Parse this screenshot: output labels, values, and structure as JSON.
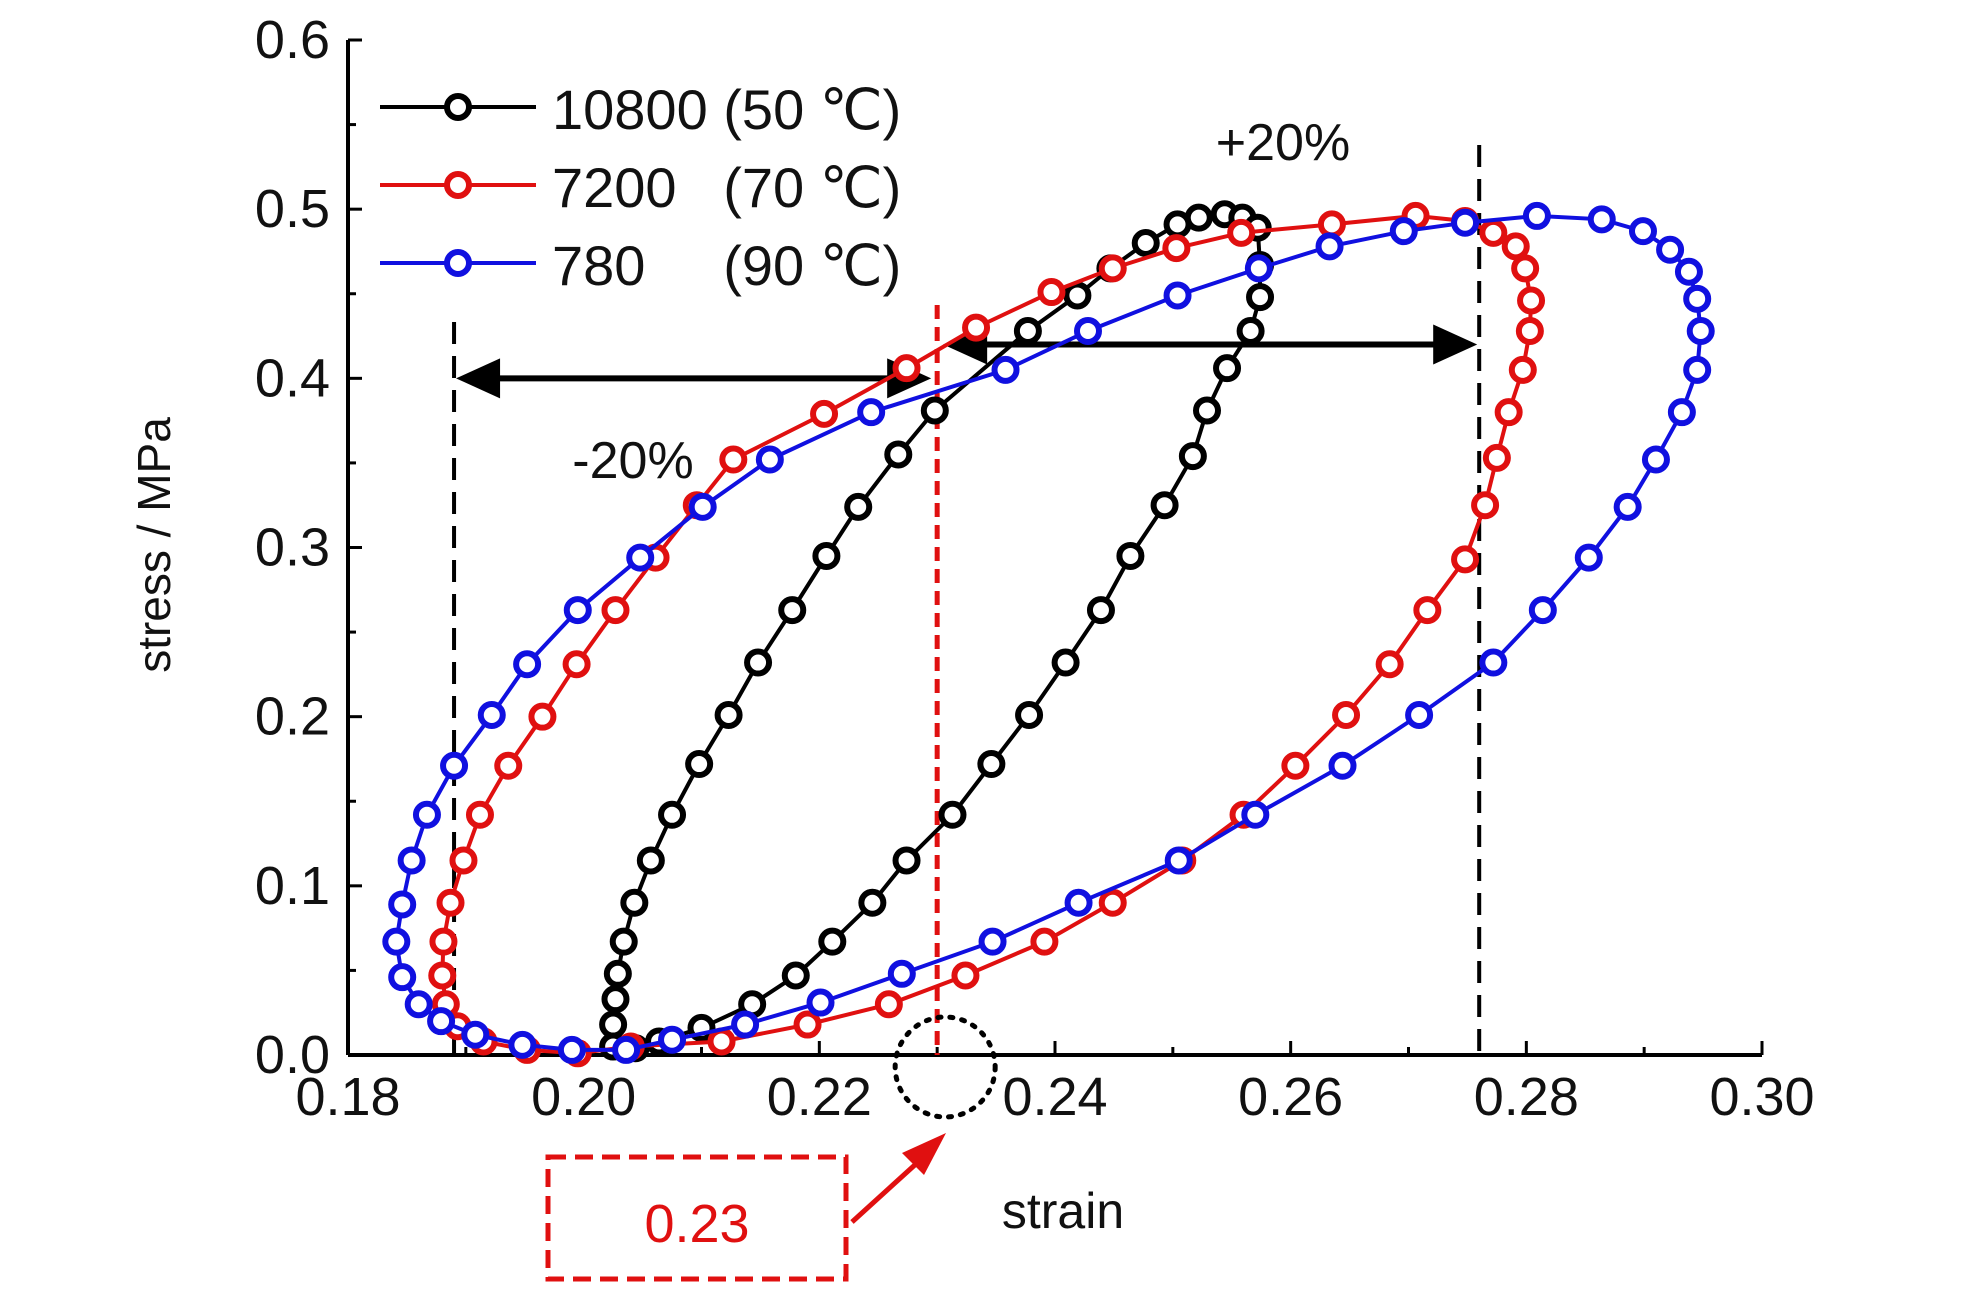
{
  "chart_data": {
    "type": "line",
    "xlabel": "strain",
    "ylabel": "stress / MPa",
    "xlim": [
      0.18,
      0.3
    ],
    "ylim": [
      0.0,
      0.6
    ],
    "xticks": [
      "0.18",
      "0.20",
      "0.22",
      "0.24",
      "0.26",
      "0.28",
      "0.30"
    ],
    "yticks": [
      "0.0",
      "0.1",
      "0.2",
      "0.3",
      "0.4",
      "0.5",
      "0.6"
    ],
    "grid": false,
    "legend_position": "top-left",
    "series": [
      {
        "name": "10800 (50 ℃)",
        "color": "#000000",
        "points": [
          [
            0.2025,
            0.005
          ],
          [
            0.2025,
            0.018
          ],
          [
            0.2027,
            0.033
          ],
          [
            0.2029,
            0.048
          ],
          [
            0.2034,
            0.067
          ],
          [
            0.2043,
            0.09
          ],
          [
            0.2057,
            0.115
          ],
          [
            0.2075,
            0.142
          ],
          [
            0.2098,
            0.172
          ],
          [
            0.2123,
            0.201
          ],
          [
            0.2148,
            0.232
          ],
          [
            0.2177,
            0.263
          ],
          [
            0.2206,
            0.295
          ],
          [
            0.2233,
            0.324
          ],
          [
            0.2267,
            0.355
          ],
          [
            0.2298,
            0.381
          ],
          [
            0.2377,
            0.428
          ],
          [
            0.2419,
            0.449
          ],
          [
            0.2447,
            0.465
          ],
          [
            0.2477,
            0.48
          ],
          [
            0.2504,
            0.491
          ],
          [
            0.2522,
            0.495
          ],
          [
            0.2544,
            0.497
          ],
          [
            0.2559,
            0.495
          ],
          [
            0.2572,
            0.489
          ],
          [
            0.2574,
            0.467
          ],
          [
            0.2574,
            0.448
          ],
          [
            0.2566,
            0.428
          ],
          [
            0.2546,
            0.406
          ],
          [
            0.2529,
            0.381
          ],
          [
            0.2517,
            0.354
          ],
          [
            0.2493,
            0.325
          ],
          [
            0.2464,
            0.295
          ],
          [
            0.2439,
            0.263
          ],
          [
            0.2409,
            0.232
          ],
          [
            0.2378,
            0.201
          ],
          [
            0.2346,
            0.172
          ],
          [
            0.2313,
            0.142
          ],
          [
            0.2274,
            0.115
          ],
          [
            0.2245,
            0.09
          ],
          [
            0.2211,
            0.067
          ],
          [
            0.218,
            0.047
          ],
          [
            0.2143,
            0.03
          ],
          [
            0.21,
            0.016
          ],
          [
            0.2064,
            0.008
          ],
          [
            0.2044,
            0.004
          ],
          [
            0.2025,
            0.005
          ]
        ]
      },
      {
        "name": "7200   (70 ℃)",
        "color": "#e01010",
        "points": [
          [
            0.204,
            0.005
          ],
          [
            0.1995,
            0.001
          ],
          [
            0.1952,
            0.003
          ],
          [
            0.1915,
            0.008
          ],
          [
            0.1893,
            0.017
          ],
          [
            0.1883,
            0.03
          ],
          [
            0.188,
            0.047
          ],
          [
            0.1881,
            0.067
          ],
          [
            0.1887,
            0.09
          ],
          [
            0.1898,
            0.115
          ],
          [
            0.1912,
            0.142
          ],
          [
            0.1936,
            0.171
          ],
          [
            0.1965,
            0.2
          ],
          [
            0.1994,
            0.231
          ],
          [
            0.2027,
            0.263
          ],
          [
            0.2061,
            0.294
          ],
          [
            0.2096,
            0.325
          ],
          [
            0.2127,
            0.352
          ],
          [
            0.2204,
            0.379
          ],
          [
            0.2274,
            0.406
          ],
          [
            0.2333,
            0.43
          ],
          [
            0.2397,
            0.451
          ],
          [
            0.2449,
            0.465
          ],
          [
            0.2503,
            0.477
          ],
          [
            0.2558,
            0.486
          ],
          [
            0.2635,
            0.491
          ],
          [
            0.2706,
            0.496
          ],
          [
            0.2748,
            0.493
          ],
          [
            0.2772,
            0.486
          ],
          [
            0.2791,
            0.478
          ],
          [
            0.2799,
            0.465
          ],
          [
            0.2804,
            0.446
          ],
          [
            0.2803,
            0.428
          ],
          [
            0.2797,
            0.405
          ],
          [
            0.2785,
            0.38
          ],
          [
            0.2775,
            0.353
          ],
          [
            0.2765,
            0.325
          ],
          [
            0.2748,
            0.293
          ],
          [
            0.2716,
            0.263
          ],
          [
            0.2684,
            0.231
          ],
          [
            0.2647,
            0.201
          ],
          [
            0.2604,
            0.171
          ],
          [
            0.256,
            0.142
          ],
          [
            0.2508,
            0.115
          ],
          [
            0.2449,
            0.09
          ],
          [
            0.2391,
            0.067
          ],
          [
            0.2324,
            0.047
          ],
          [
            0.2259,
            0.03
          ],
          [
            0.219,
            0.018
          ],
          [
            0.2117,
            0.008
          ],
          [
            0.204,
            0.005
          ]
        ]
      },
      {
        "name": "780     (90 ℃)",
        "color": "#1010e0",
        "points": [
          [
            0.2036,
            0.003
          ],
          [
            0.199,
            0.003
          ],
          [
            0.1948,
            0.006
          ],
          [
            0.1908,
            0.012
          ],
          [
            0.1879,
            0.02
          ],
          [
            0.186,
            0.03
          ],
          [
            0.1846,
            0.046
          ],
          [
            0.1841,
            0.067
          ],
          [
            0.1846,
            0.089
          ],
          [
            0.1854,
            0.115
          ],
          [
            0.1867,
            0.142
          ],
          [
            0.189,
            0.171
          ],
          [
            0.1922,
            0.201
          ],
          [
            0.1952,
            0.231
          ],
          [
            0.1995,
            0.263
          ],
          [
            0.2048,
            0.294
          ],
          [
            0.2101,
            0.324
          ],
          [
            0.2158,
            0.352
          ],
          [
            0.2244,
            0.38
          ],
          [
            0.2358,
            0.405
          ],
          [
            0.2428,
            0.428
          ],
          [
            0.2504,
            0.449
          ],
          [
            0.2573,
            0.465
          ],
          [
            0.2633,
            0.478
          ],
          [
            0.2696,
            0.487
          ],
          [
            0.2748,
            0.492
          ],
          [
            0.2809,
            0.496
          ],
          [
            0.2864,
            0.494
          ],
          [
            0.2899,
            0.487
          ],
          [
            0.2922,
            0.476
          ],
          [
            0.2938,
            0.463
          ],
          [
            0.2945,
            0.447
          ],
          [
            0.2948,
            0.428
          ],
          [
            0.2945,
            0.405
          ],
          [
            0.2932,
            0.38
          ],
          [
            0.291,
            0.352
          ],
          [
            0.2886,
            0.324
          ],
          [
            0.2853,
            0.294
          ],
          [
            0.2814,
            0.263
          ],
          [
            0.2772,
            0.232
          ],
          [
            0.2709,
            0.201
          ],
          [
            0.2644,
            0.171
          ],
          [
            0.257,
            0.142
          ],
          [
            0.2505,
            0.115
          ],
          [
            0.242,
            0.09
          ],
          [
            0.2347,
            0.067
          ],
          [
            0.227,
            0.048
          ],
          [
            0.2201,
            0.031
          ],
          [
            0.2137,
            0.018
          ],
          [
            0.2075,
            0.009
          ],
          [
            0.2036,
            0.003
          ]
        ]
      }
    ],
    "annotations": {
      "left_vline_x": 0.189,
      "right_vline_x": 0.276,
      "red_vline_x": 0.23,
      "left_span_label": "-20%",
      "left_span_y": 0.4,
      "right_span_label": "+20%",
      "right_span_y": 0.42,
      "red_box_label": "0.23",
      "red_color": "#e01010"
    }
  }
}
